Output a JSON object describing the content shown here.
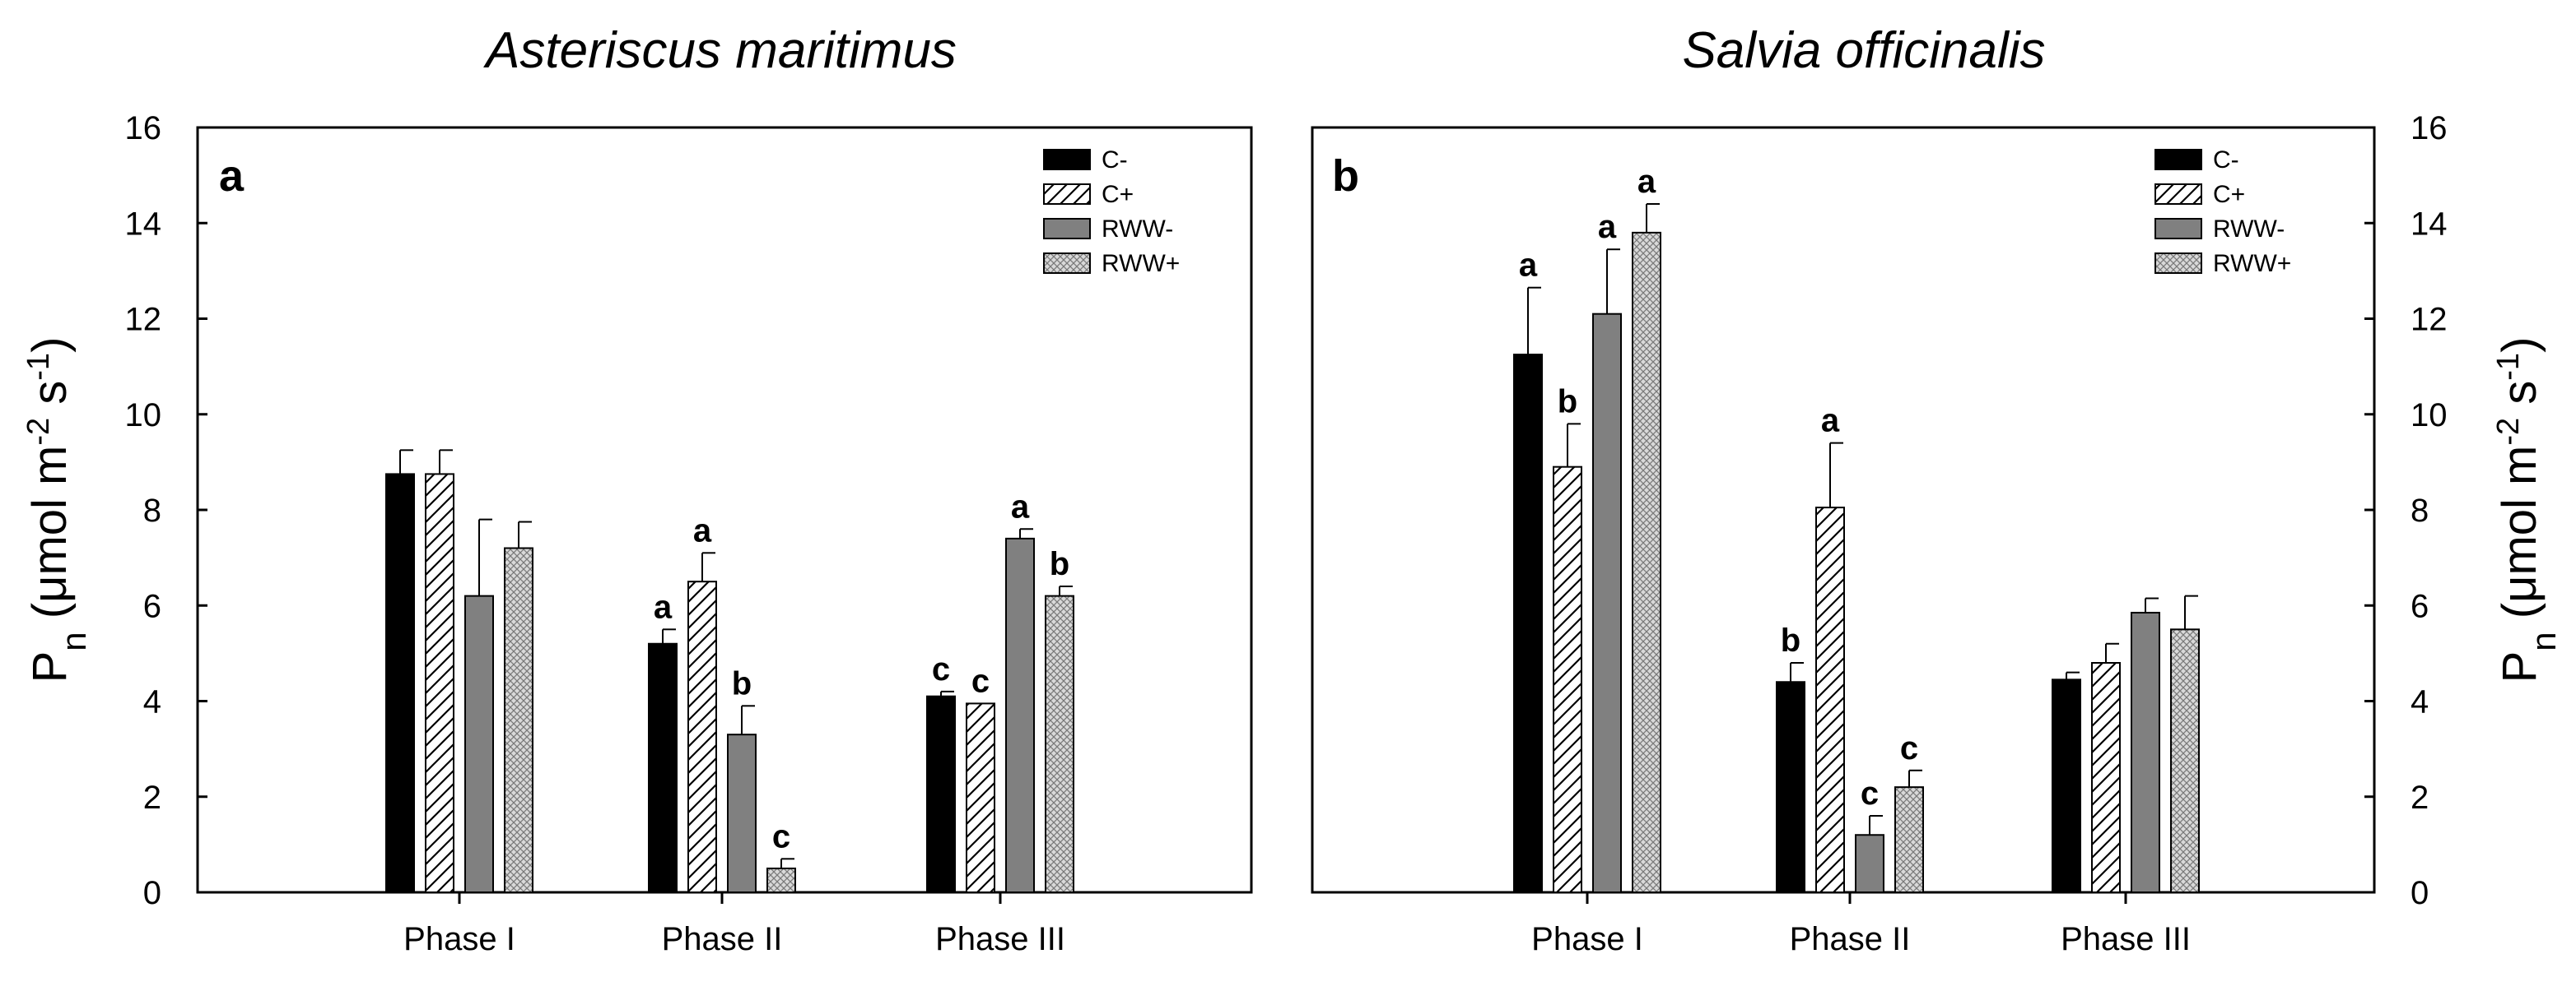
{
  "chart_data": [
    {
      "type": "bar",
      "panel": "a",
      "title": "Asteriscus maritimus",
      "ylabel": {
        "main": "P",
        "sub": "n",
        "unit_pre": " (μmol m",
        "exp1": "-2",
        "mid": " s",
        "exp2": "-1",
        "close": ")"
      },
      "xlabel": "",
      "ylim": [
        0,
        16
      ],
      "yticks": [
        0,
        2,
        4,
        6,
        8,
        10,
        12,
        14,
        16
      ],
      "categories": [
        "Phase I",
        "Phase II",
        "Phase III"
      ],
      "legend_position": "top-right",
      "series": [
        {
          "name": "C-",
          "pattern": "solid-black",
          "values": [
            8.75,
            5.2,
            4.1
          ],
          "errors": [
            0.5,
            0.3,
            0.1
          ],
          "labels": [
            "",
            "a",
            "c"
          ]
        },
        {
          "name": "C+",
          "pattern": "hatch",
          "values": [
            8.75,
            6.5,
            3.95
          ],
          "errors": [
            0.5,
            0.6,
            0.0
          ],
          "labels": [
            "",
            "a",
            "c"
          ]
        },
        {
          "name": "RWW-",
          "pattern": "solid-gray",
          "values": [
            6.2,
            3.3,
            7.4
          ],
          "errors": [
            1.6,
            0.6,
            0.2
          ],
          "labels": [
            "",
            "b",
            "a"
          ]
        },
        {
          "name": "RWW+",
          "pattern": "crosshatch",
          "values": [
            7.2,
            0.5,
            6.2
          ],
          "errors": [
            0.55,
            0.2,
            0.2
          ],
          "labels": [
            "",
            "c",
            "b"
          ]
        }
      ]
    },
    {
      "type": "bar",
      "panel": "b",
      "title": "Salvia officinalis",
      "ylabel": {
        "main": "P",
        "sub": "n",
        "unit_pre": " (μmol m",
        "exp1": "-2",
        "mid": " s",
        "exp2": "-1",
        "close": ")"
      },
      "xlabel": "",
      "ylim": [
        0,
        16
      ],
      "yticks": [
        0,
        2,
        4,
        6,
        8,
        10,
        12,
        14,
        16
      ],
      "categories": [
        "Phase I",
        "Phase II",
        "Phase III"
      ],
      "legend_position": "top-right",
      "series": [
        {
          "name": "C-",
          "pattern": "solid-black",
          "values": [
            11.25,
            4.4,
            4.45
          ],
          "errors": [
            1.4,
            0.4,
            0.15
          ],
          "labels": [
            "a",
            "b",
            ""
          ]
        },
        {
          "name": "C+",
          "pattern": "hatch",
          "values": [
            8.9,
            8.05,
            4.8
          ],
          "errors": [
            0.9,
            1.35,
            0.4
          ],
          "labels": [
            "b",
            "a",
            ""
          ]
        },
        {
          "name": "RWW-",
          "pattern": "solid-gray",
          "values": [
            12.1,
            1.2,
            5.85
          ],
          "errors": [
            1.35,
            0.4,
            0.3
          ],
          "labels": [
            "a",
            "c",
            ""
          ]
        },
        {
          "name": "RWW+",
          "pattern": "crosshatch",
          "values": [
            13.8,
            2.2,
            5.5
          ],
          "errors": [
            0.6,
            0.35,
            0.7
          ],
          "labels": [
            "a",
            "c",
            ""
          ]
        }
      ]
    }
  ]
}
